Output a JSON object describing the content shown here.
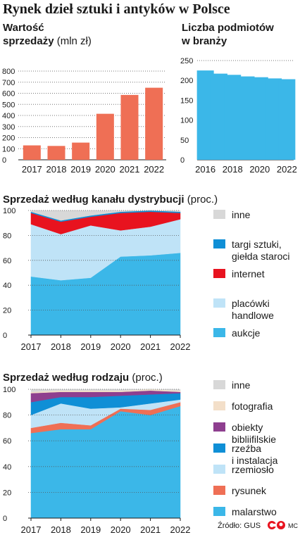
{
  "header": {
    "title": "Rynek dzieł sztuki i antyków w Polsce"
  },
  "footer": {
    "source": "Źródło: GUS",
    "logo_text": "MC"
  },
  "chart_data": [
    {
      "id": "sales",
      "type": "bar",
      "title_bold_1": "Wartość",
      "title_bold_2": "sprzedaży",
      "title_unit": "(mln zł)",
      "categories": [
        "2017",
        "2018",
        "2019",
        "2020",
        "2021",
        "2022"
      ],
      "values": [
        130,
        125,
        155,
        415,
        585,
        650
      ],
      "ylim": [
        0,
        800
      ],
      "yticks": [
        0,
        100,
        200,
        300,
        400,
        500,
        600,
        700,
        800
      ],
      "color": "#ef6f55",
      "grid": "dotted"
    },
    {
      "id": "entities",
      "type": "bar",
      "title_bold_1": "Liczba podmiotów",
      "title_bold_2": "w branży",
      "categories": [
        "2016",
        "2017",
        "2018",
        "2019",
        "2020",
        "2021",
        "2022"
      ],
      "xtick_labels": [
        "2016",
        "",
        "2018",
        "",
        "2020",
        "",
        "2022"
      ],
      "values": [
        225,
        217,
        214,
        210,
        208,
        205,
        203
      ],
      "ylim": [
        0,
        250
      ],
      "yticks": [
        0,
        50,
        100,
        150,
        200,
        250
      ],
      "color": "#3bb7e8",
      "grid": "dotted"
    },
    {
      "id": "channel",
      "type": "area",
      "stacked": true,
      "title_bold": "Sprzedaż według kanału dystrybucji",
      "title_unit": "(proc.)",
      "x": [
        "2017",
        "2018",
        "2019",
        "2020",
        "2021",
        "2022"
      ],
      "ylim": [
        0,
        100
      ],
      "yticks": [
        0,
        20,
        40,
        60,
        80,
        100
      ],
      "series": [
        {
          "name": "aukcje",
          "color": "#3bb7e8",
          "values": [
            47,
            44,
            46,
            63,
            64,
            66
          ]
        },
        {
          "name": "placówki handlowe",
          "legend_lines": [
            "placówki",
            "handlowe"
          ],
          "color": "#bfe3f7",
          "values": [
            42,
            37,
            42,
            21,
            23,
            27
          ]
        },
        {
          "name": "internet",
          "color": "#e8131f",
          "values": [
            9,
            10,
            7,
            14,
            12,
            5
          ]
        },
        {
          "name": "targi sztuki, giełda staroci",
          "legend_lines": [
            "targi sztuki,",
            "giełda staroci"
          ],
          "color": "#0f8fd6",
          "values": [
            1,
            1,
            1,
            1,
            1,
            1
          ]
        },
        {
          "name": "inne",
          "color": "#d8d8d8",
          "values": [
            1,
            8,
            4,
            1,
            0,
            1
          ]
        }
      ],
      "legend_order": [
        "inne",
        "targi sztuki, giełda staroci",
        "internet",
        "placówki handlowe",
        "aukcje"
      ]
    },
    {
      "id": "type",
      "type": "area",
      "stacked": true,
      "title_bold": "Sprzedaż według rodzaju",
      "title_unit": "(proc.)",
      "x": [
        "2017",
        "2018",
        "2019",
        "2020",
        "2021",
        "2022"
      ],
      "ylim": [
        0,
        100
      ],
      "yticks": [
        0,
        20,
        40,
        60,
        80,
        100
      ],
      "series": [
        {
          "name": "malarstwo",
          "color": "#3bb7e8",
          "values": [
            66,
            69,
            69,
            83,
            80,
            87
          ]
        },
        {
          "name": "rysunek",
          "color": "#ef6f55",
          "values": [
            4,
            5,
            3,
            2,
            4,
            3
          ]
        },
        {
          "name": "rzemiosło",
          "color": "#bfe3f7",
          "values": [
            10,
            15,
            13,
            1,
            5,
            2
          ]
        },
        {
          "name": "rzeźba i instalacja",
          "legend_lines": [
            "rzeźba",
            "i instalacja"
          ],
          "color": "#0f8fd6",
          "values": [
            10,
            5,
            9,
            9,
            7,
            5
          ]
        },
        {
          "name": "obiekty bibliifilskie",
          "legend_lines": [
            "obiekty",
            "bibliifilskie"
          ],
          "color": "#8e3f8f",
          "values": [
            7,
            4,
            4,
            3,
            3,
            1
          ]
        },
        {
          "name": "fotografia",
          "color": "#f3dfc9",
          "values": [
            1,
            1,
            1,
            1,
            1,
            1
          ]
        },
        {
          "name": "inne",
          "color": "#d8d8d8",
          "values": [
            2,
            1,
            1,
            1,
            0,
            1
          ]
        }
      ],
      "legend_order": [
        "inne",
        "fotografia",
        "obiekty bibliifilskie",
        "rzeźba i instalacja",
        "rzemiosło",
        "rysunek",
        "malarstwo"
      ]
    }
  ]
}
